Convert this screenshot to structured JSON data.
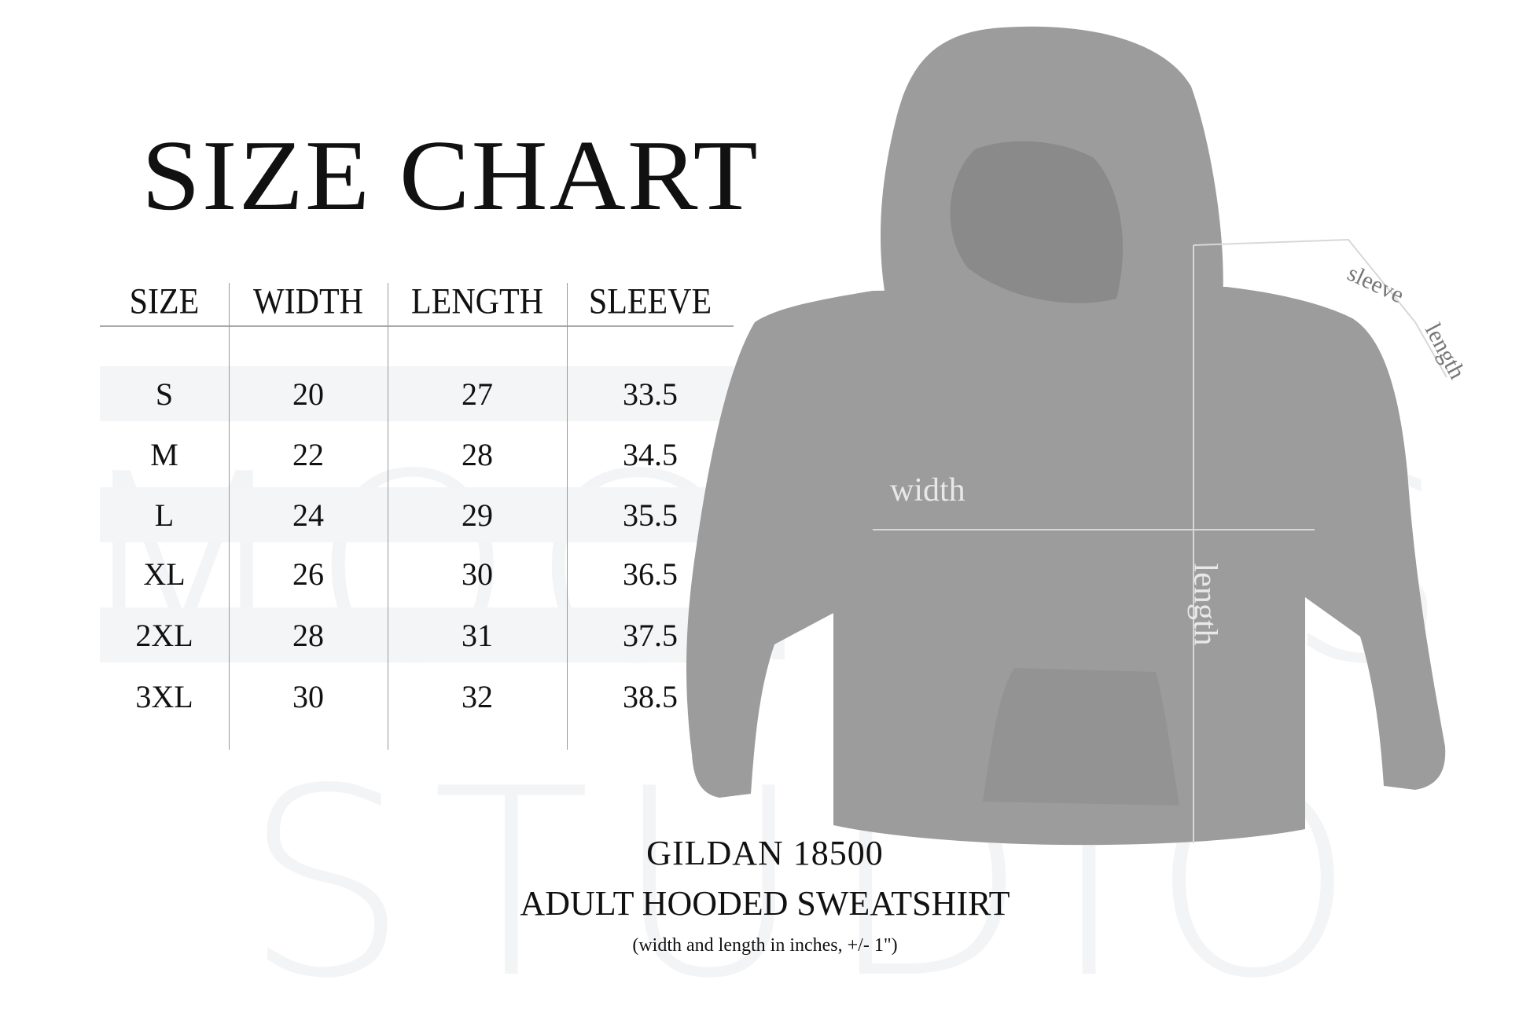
{
  "title": "SIZE CHART",
  "watermark": [
    "MOCKUPS",
    "STUDIO"
  ],
  "table": {
    "headers": [
      "SIZE",
      "WIDTH",
      "LENGTH",
      "SLEEVE"
    ],
    "rows": [
      [
        "S",
        "20",
        "27",
        "33.5"
      ],
      [
        "M",
        "22",
        "28",
        "34.5"
      ],
      [
        "L",
        "24",
        "29",
        "35.5"
      ],
      [
        "XL",
        "26",
        "30",
        "36.5"
      ],
      [
        "2XL",
        "28",
        "31",
        "37.5"
      ],
      [
        "3XL",
        "30",
        "32",
        "38.5"
      ]
    ]
  },
  "diagram": {
    "width_label": "width",
    "length_label": "length",
    "sleeve_label_1": "sleeve",
    "sleeve_label_2": "length",
    "garment_color": "#9a9a9a"
  },
  "footer": {
    "product": "GILDAN 18500",
    "description": "ADULT HOODED SWEATSHIRT",
    "note": "(width and length in inches, +/- 1\")"
  }
}
